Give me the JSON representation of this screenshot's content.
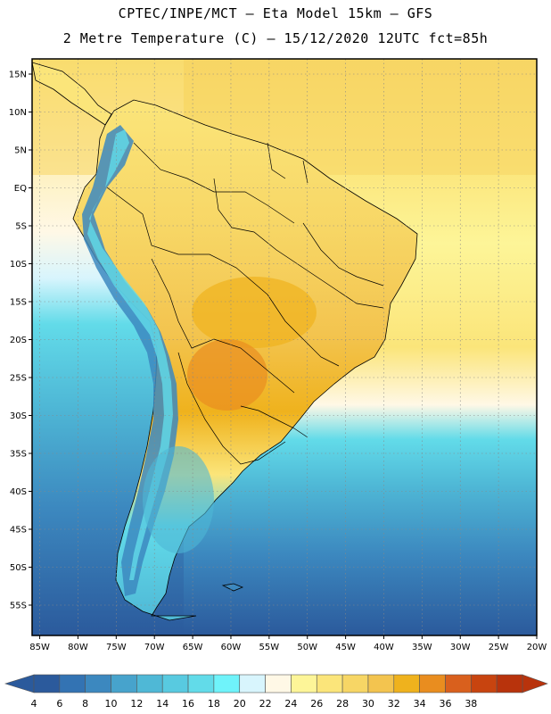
{
  "header": {
    "line1": "CPTEC/INPE/MCT –  Eta Model 15km – GFS",
    "line2": "2 Metre Temperature (C) – 15/12/2020 12UTC fct=85h"
  },
  "axes": {
    "lat_labels": [
      "15N",
      "10N",
      "5N",
      "EQ",
      "5S",
      "10S",
      "15S",
      "20S",
      "25S",
      "30S",
      "35S",
      "40S",
      "45S",
      "50S",
      "55S"
    ],
    "lat_values": [
      15,
      10,
      5,
      0,
      -5,
      -10,
      -15,
      -20,
      -25,
      -30,
      -35,
      -40,
      -45,
      -50,
      -55
    ],
    "lon_labels": [
      "85W",
      "80W",
      "75W",
      "70W",
      "65W",
      "60W",
      "55W",
      "50W",
      "45W",
      "40W",
      "35W",
      "30W",
      "25W",
      "20W"
    ],
    "lon_values": [
      -85,
      -80,
      -75,
      -70,
      -65,
      -60,
      -55,
      -50,
      -45,
      -40,
      -35,
      -30,
      -25,
      -20
    ],
    "lat_range": [
      -59,
      17
    ],
    "lon_range": [
      -86,
      -20
    ]
  },
  "legend": {
    "labels": [
      "4",
      "6",
      "8",
      "10",
      "12",
      "14",
      "16",
      "18",
      "20",
      "22",
      "24",
      "26",
      "28",
      "30",
      "32",
      "34",
      "36",
      "38"
    ],
    "colors": [
      "#2b5a9c",
      "#3373b3",
      "#3c88bf",
      "#47a3cc",
      "#4fb8d6",
      "#58cae0",
      "#62dbe9",
      "#6ff3fa",
      "#d8f5fd",
      "#fff8e6",
      "#fdf598",
      "#fbe57a",
      "#f7d665",
      "#f3c44f",
      "#efb21d",
      "#e98d1f",
      "#d9601d",
      "#c8440f",
      "#b8330c"
    ]
  }
}
